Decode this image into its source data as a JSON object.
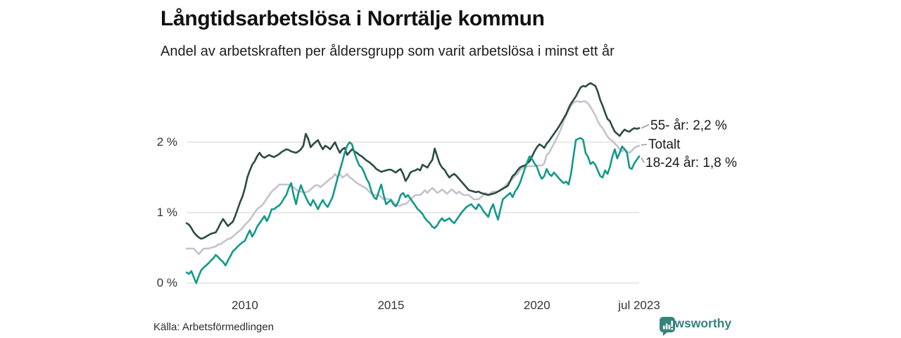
{
  "header": {
    "title": "Långtidsarbetslösa i Norrtälje kommun",
    "subtitle": "Andel av arbetskraften per åldersgrupp som varit arbetslösa i minst ett år"
  },
  "chart_data": {
    "type": "line",
    "unit": "%",
    "frequency": "monthly",
    "x_range": [
      "2008-01",
      "2023-07"
    ],
    "ylim": [
      0,
      3
    ],
    "grid": true,
    "legend_position": "right-of-line-ends",
    "x_ticks": [
      {
        "label": "2010",
        "index": 24
      },
      {
        "label": "2015",
        "index": 84
      },
      {
        "label": "2020",
        "index": 144
      },
      {
        "label": "jul 2023",
        "index": 186
      }
    ],
    "y_ticks": [
      {
        "label": "0 %",
        "value": 0
      },
      {
        "label": "1 %",
        "value": 1
      },
      {
        "label": "2 %",
        "value": 2
      }
    ],
    "series": [
      {
        "name": "55- år",
        "end_label": "55- år: 2,2 %",
        "color": "#2b4c41",
        "values": [
          0.85,
          0.83,
          0.78,
          0.72,
          0.68,
          0.65,
          0.63,
          0.64,
          0.66,
          0.68,
          0.7,
          0.71,
          0.72,
          0.78,
          0.85,
          0.91,
          0.86,
          0.81,
          0.84,
          0.87,
          0.95,
          1.05,
          1.15,
          1.23,
          1.35,
          1.5,
          1.6,
          1.68,
          1.73,
          1.8,
          1.85,
          1.8,
          1.78,
          1.8,
          1.82,
          1.8,
          1.79,
          1.81,
          1.83,
          1.86,
          1.88,
          1.9,
          1.89,
          1.87,
          1.86,
          1.85,
          1.87,
          1.9,
          1.95,
          2.12,
          2.05,
          1.93,
          1.97,
          2.0,
          2.03,
          1.96,
          1.9,
          1.95,
          1.93,
          1.9,
          1.95,
          2.0,
          1.92,
          1.85,
          1.9,
          1.92,
          1.82,
          1.86,
          1.9,
          1.87,
          1.85,
          1.82,
          1.8,
          1.77,
          1.74,
          1.72,
          1.69,
          1.66,
          1.62,
          1.6,
          1.58,
          1.59,
          1.6,
          1.61,
          1.61,
          1.59,
          1.57,
          1.6,
          1.62,
          1.55,
          1.45,
          1.5,
          1.57,
          1.59,
          1.6,
          1.62,
          1.6,
          1.68,
          1.66,
          1.64,
          1.7,
          1.75,
          1.91,
          1.8,
          1.7,
          1.64,
          1.61,
          1.55,
          1.5,
          1.53,
          1.55,
          1.52,
          1.48,
          1.44,
          1.4,
          1.36,
          1.32,
          1.31,
          1.3,
          1.29,
          1.3,
          1.28,
          1.27,
          1.26,
          1.25,
          1.26,
          1.27,
          1.28,
          1.3,
          1.32,
          1.34,
          1.36,
          1.38,
          1.45,
          1.52,
          1.55,
          1.6,
          1.64,
          1.66,
          1.67,
          1.7,
          1.73,
          1.8,
          1.87,
          1.93,
          1.97,
          1.95,
          1.92,
          1.98,
          2.02,
          2.07,
          2.12,
          2.17,
          2.22,
          2.28,
          2.34,
          2.4,
          2.48,
          2.55,
          2.6,
          2.65,
          2.72,
          2.78,
          2.8,
          2.79,
          2.82,
          2.84,
          2.82,
          2.8,
          2.72,
          2.6,
          2.52,
          2.42,
          2.33,
          2.3,
          2.22,
          2.15,
          2.12,
          2.09,
          2.14,
          2.18,
          2.16,
          2.15,
          2.18,
          2.2,
          2.19,
          2.2
        ]
      },
      {
        "name": "Totalt",
        "end_label": "Totalt",
        "color": "#c5c2cf",
        "values": [
          0.49,
          0.49,
          0.49,
          0.49,
          0.45,
          0.41,
          0.45,
          0.49,
          0.49,
          0.49,
          0.5,
          0.51,
          0.52,
          0.55,
          0.55,
          0.58,
          0.6,
          0.63,
          0.63,
          0.66,
          0.69,
          0.72,
          0.75,
          0.78,
          0.83,
          0.86,
          0.9,
          0.95,
          1.0,
          1.05,
          1.08,
          1.1,
          1.15,
          1.2,
          1.25,
          1.3,
          1.33,
          1.36,
          1.4,
          1.4,
          1.4,
          1.4,
          1.4,
          1.38,
          1.36,
          1.33,
          1.3,
          1.3,
          1.29,
          1.29,
          1.3,
          1.33,
          1.36,
          1.39,
          1.39,
          1.36,
          1.39,
          1.42,
          1.45,
          1.48,
          1.5,
          1.55,
          1.5,
          1.55,
          1.5,
          1.52,
          1.55,
          1.5,
          1.48,
          1.45,
          1.42,
          1.4,
          1.38,
          1.36,
          1.34,
          1.3,
          1.27,
          1.25,
          1.25,
          1.25,
          1.22,
          1.19,
          1.2,
          1.19,
          1.19,
          1.15,
          1.12,
          1.1,
          1.1,
          1.12,
          1.12,
          1.15,
          1.19,
          1.22,
          1.25,
          1.25,
          1.25,
          1.28,
          1.32,
          1.28,
          1.32,
          1.35,
          1.32,
          1.28,
          1.3,
          1.33,
          1.3,
          1.27,
          1.3,
          1.33,
          1.3,
          1.27,
          1.3,
          1.27,
          1.25,
          1.25,
          1.25,
          1.22,
          1.19,
          1.19,
          1.19,
          1.22,
          1.25,
          1.28,
          1.25,
          1.28,
          1.3,
          1.3,
          1.3,
          1.32,
          1.35,
          1.38,
          1.42,
          1.45,
          1.48,
          1.52,
          1.55,
          1.6,
          1.63,
          1.65,
          1.66,
          1.66,
          1.66,
          1.66,
          1.67,
          1.67,
          1.67,
          1.7,
          1.82,
          1.85,
          1.92,
          1.98,
          2.05,
          2.12,
          2.2,
          2.3,
          2.38,
          2.45,
          2.52,
          2.56,
          2.58,
          2.58,
          2.57,
          2.58,
          2.58,
          2.55,
          2.5,
          2.44,
          2.38,
          2.3,
          2.24,
          2.2,
          2.14,
          2.08,
          2.04,
          2.02,
          1.98,
          1.95,
          1.9,
          1.87,
          1.9,
          1.87,
          1.85,
          1.88,
          1.92,
          1.94,
          1.95
        ]
      },
      {
        "name": "18-24 år",
        "end_label": "18-24 år: 1,8 %",
        "color": "#13998a",
        "values": [
          0.15,
          0.13,
          0.17,
          0.08,
          0.0,
          0.1,
          0.18,
          0.22,
          0.25,
          0.28,
          0.32,
          0.35,
          0.4,
          0.37,
          0.33,
          0.3,
          0.25,
          0.32,
          0.38,
          0.45,
          0.48,
          0.52,
          0.55,
          0.58,
          0.6,
          0.68,
          0.75,
          0.66,
          0.72,
          0.8,
          0.85,
          0.9,
          0.95,
          0.88,
          0.95,
          1.05,
          1.05,
          1.08,
          1.1,
          1.14,
          1.2,
          1.25,
          1.35,
          1.42,
          1.25,
          1.12,
          1.28,
          1.39,
          1.3,
          1.22,
          1.15,
          1.1,
          1.18,
          1.12,
          1.05,
          1.12,
          1.18,
          1.12,
          1.08,
          1.15,
          1.22,
          1.35,
          1.48,
          1.6,
          1.72,
          1.85,
          1.95,
          2.0,
          1.97,
          1.85,
          1.75,
          1.67,
          1.64,
          1.57,
          1.48,
          1.42,
          1.3,
          1.22,
          1.19,
          1.3,
          1.4,
          1.25,
          1.12,
          1.15,
          1.18,
          1.12,
          1.09,
          1.15,
          1.25,
          1.28,
          1.22,
          1.25,
          1.2,
          1.15,
          1.1,
          1.05,
          1.02,
          0.98,
          0.92,
          0.88,
          0.85,
          0.8,
          0.78,
          0.82,
          0.88,
          0.92,
          0.88,
          0.9,
          0.92,
          0.88,
          0.85,
          0.9,
          0.95,
          1.0,
          1.04,
          1.08,
          1.1,
          1.12,
          1.08,
          1.05,
          1.12,
          1.08,
          1.02,
          0.98,
          0.94,
          1.05,
          1.12,
          1.0,
          0.9,
          1.05,
          1.19,
          1.22,
          1.25,
          1.28,
          1.22,
          1.3,
          1.35,
          1.42,
          1.52,
          1.62,
          1.72,
          1.8,
          1.76,
          1.7,
          1.65,
          1.55,
          1.48,
          1.52,
          1.62,
          1.55,
          1.52,
          1.57,
          1.53,
          1.49,
          1.45,
          1.42,
          1.44,
          1.4,
          1.55,
          1.8,
          2.03,
          2.05,
          2.06,
          2.03,
          1.85,
          1.79,
          1.69,
          1.72,
          1.68,
          1.6,
          1.52,
          1.5,
          1.6,
          1.55,
          1.65,
          1.8,
          1.9,
          1.77,
          1.85,
          1.94,
          1.9,
          1.85,
          1.64,
          1.62,
          1.7,
          1.75,
          1.8
        ]
      }
    ],
    "style": {
      "grid_color": "#d9d9d9",
      "leader_color": "#999999"
    }
  },
  "source": {
    "label": "Källa: Arbetsförmedlingen"
  },
  "branding": {
    "name": "Newsworthy",
    "logo_icon": "bar-chart-speech-bubble-icon",
    "color": "#35837e"
  }
}
